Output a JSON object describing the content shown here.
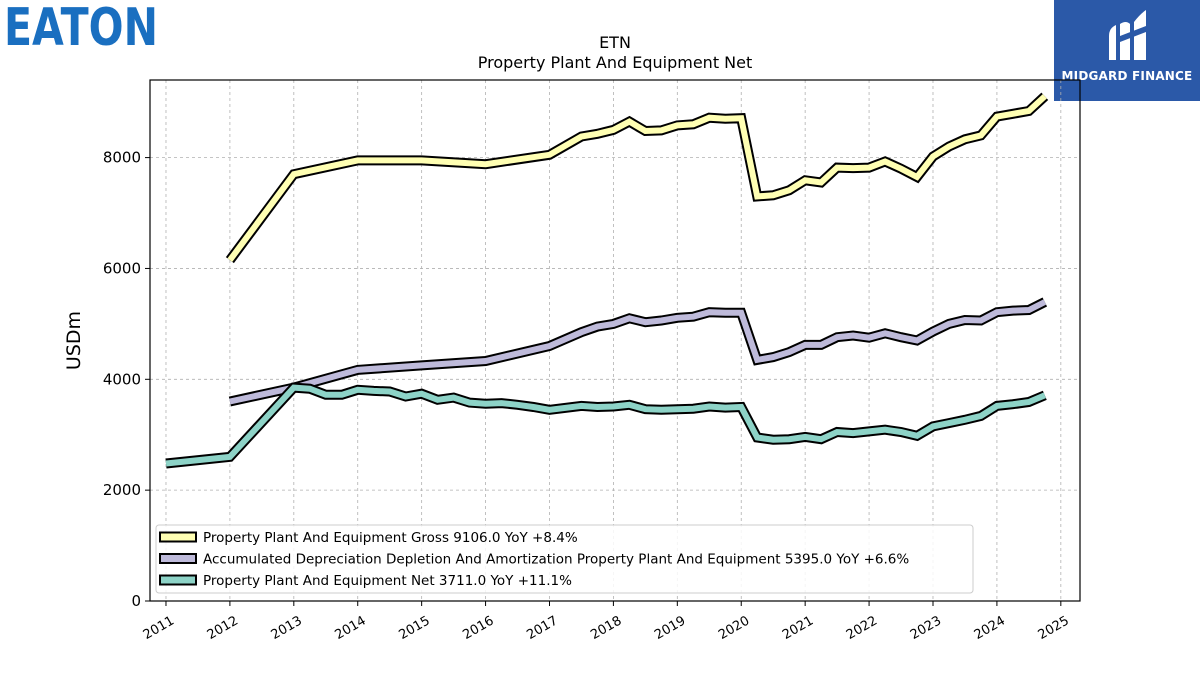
{
  "logos": {
    "left": "EATON",
    "right": "MIDGARD FINANCE",
    "left_color": "#1a6fc0",
    "right_bg": "#2b59a8"
  },
  "chart_data": {
    "type": "line",
    "title": "ETN",
    "subtitle": "Property Plant And Equipment Net",
    "ylabel": "USDm",
    "xlabel": "",
    "ylim": [
      0,
      9400
    ],
    "xlim": [
      2010.75,
      2025.3
    ],
    "yticks": [
      0,
      2000,
      4000,
      6000,
      8000
    ],
    "xticks": [
      "2011",
      "2012",
      "2013",
      "2014",
      "2015",
      "2016",
      "2017",
      "2018",
      "2019",
      "2020",
      "2021",
      "2022",
      "2023",
      "2024",
      "2025"
    ],
    "grid": true,
    "legend_position": "lower-left",
    "series": [
      {
        "name": "Property Plant And Equipment Gross",
        "legend_label": "Property Plant And Equipment Gross  9106.0 YoY +8.4%",
        "color": "#ffffb3",
        "x": [
          "2012-01-01",
          "2013-01-01",
          "2014-01-01",
          "2015-01-01",
          "2016-01-01",
          "2017-01-01",
          "2017-07-01",
          "2017-10-01",
          "2018-01-01",
          "2018-04-01",
          "2018-07-01",
          "2018-10-01",
          "2019-01-01",
          "2019-04-01",
          "2019-07-01",
          "2019-10-01",
          "2020-01-01",
          "2020-04-01",
          "2020-07-01",
          "2020-10-01",
          "2021-01-01",
          "2021-04-01",
          "2021-07-01",
          "2021-10-01",
          "2022-01-01",
          "2022-04-01",
          "2022-07-01",
          "2022-10-01",
          "2023-01-01",
          "2023-04-01",
          "2023-07-01",
          "2023-10-01",
          "2024-01-01",
          "2024-04-01",
          "2024-07-01",
          "2024-10-01"
        ],
        "y": [
          6150,
          7700,
          7950,
          7950,
          7880,
          8050,
          8380,
          8430,
          8500,
          8650,
          8480,
          8490,
          8580,
          8600,
          8720,
          8700,
          8710,
          7300,
          7320,
          7410,
          7590,
          7550,
          7820,
          7810,
          7820,
          7930,
          7800,
          7650,
          8020,
          8200,
          8330,
          8400,
          8740,
          8790,
          8840,
          9106
        ]
      },
      {
        "name": "Accumulated Depreciation Depletion And Amortization Property Plant And Equipment",
        "legend_label": "Accumulated Depreciation Depletion And Amortization Property Plant And Equipment  5395.0 YoY +6.6%",
        "color": "#bebada",
        "x": [
          "2012-01-01",
          "2013-01-01",
          "2014-01-01",
          "2015-01-01",
          "2016-01-01",
          "2017-01-01",
          "2017-07-01",
          "2017-10-01",
          "2018-01-01",
          "2018-04-01",
          "2018-07-01",
          "2018-10-01",
          "2019-01-01",
          "2019-04-01",
          "2019-07-01",
          "2019-10-01",
          "2020-01-01",
          "2020-04-01",
          "2020-07-01",
          "2020-10-01",
          "2021-01-01",
          "2021-04-01",
          "2021-07-01",
          "2021-10-01",
          "2022-01-01",
          "2022-04-01",
          "2022-07-01",
          "2022-10-01",
          "2023-01-01",
          "2023-04-01",
          "2023-07-01",
          "2023-10-01",
          "2024-01-01",
          "2024-04-01",
          "2024-07-01",
          "2024-10-01"
        ],
        "y": [
          3600,
          3850,
          4170,
          4250,
          4330,
          4600,
          4850,
          4950,
          5000,
          5100,
          5030,
          5060,
          5110,
          5130,
          5210,
          5200,
          5200,
          4350,
          4400,
          4490,
          4620,
          4620,
          4760,
          4790,
          4750,
          4830,
          4760,
          4700,
          4860,
          5000,
          5070,
          5060,
          5210,
          5240,
          5250,
          5395
        ]
      },
      {
        "name": "Property Plant And Equipment Net",
        "legend_label": "Property Plant And Equipment Net  3711.0 YoY +11.1%",
        "color": "#8dd3c7",
        "x": [
          "2011-01-01",
          "2012-01-01",
          "2013-01-01",
          "2013-04-01",
          "2013-07-01",
          "2013-10-01",
          "2014-01-01",
          "2014-04-01",
          "2014-07-01",
          "2014-10-01",
          "2015-01-01",
          "2015-04-01",
          "2015-07-01",
          "2015-10-01",
          "2016-01-01",
          "2016-04-01",
          "2016-07-01",
          "2016-10-01",
          "2017-01-01",
          "2017-07-01",
          "2017-10-01",
          "2018-01-01",
          "2018-04-01",
          "2018-07-01",
          "2018-10-01",
          "2019-01-01",
          "2019-04-01",
          "2019-07-01",
          "2019-10-01",
          "2020-01-01",
          "2020-04-01",
          "2020-07-01",
          "2020-10-01",
          "2021-01-01",
          "2021-04-01",
          "2021-07-01",
          "2021-10-01",
          "2022-01-01",
          "2022-04-01",
          "2022-07-01",
          "2022-10-01",
          "2023-01-01",
          "2023-04-01",
          "2023-07-01",
          "2023-10-01",
          "2024-01-01",
          "2024-04-01",
          "2024-07-01",
          "2024-10-01"
        ],
        "y": [
          2480,
          2600,
          3850,
          3830,
          3720,
          3720,
          3810,
          3790,
          3780,
          3690,
          3740,
          3630,
          3670,
          3580,
          3560,
          3570,
          3540,
          3500,
          3450,
          3520,
          3500,
          3510,
          3540,
          3460,
          3450,
          3460,
          3470,
          3510,
          3490,
          3500,
          2950,
          2910,
          2920,
          2960,
          2920,
          3050,
          3030,
          3060,
          3090,
          3050,
          2980,
          3150,
          3210,
          3270,
          3340,
          3520,
          3550,
          3590,
          3711
        ]
      }
    ]
  }
}
